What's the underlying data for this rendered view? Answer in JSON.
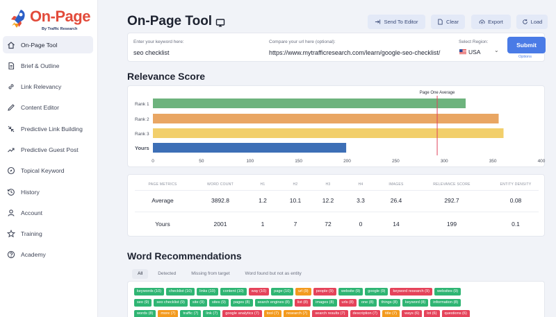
{
  "brand": {
    "name": "On-Page",
    "tagline": "By Traffic Research"
  },
  "sidebar": {
    "items": [
      {
        "label": "On-Page Tool",
        "icon": "home-icon",
        "active": true
      },
      {
        "label": "Brief & Outline",
        "icon": "document-icon",
        "active": false
      },
      {
        "label": "Link Relevancy",
        "icon": "link-icon",
        "active": false
      },
      {
        "label": "Content Editor",
        "icon": "pencil-icon",
        "active": false
      },
      {
        "label": "Predictive Link Building",
        "icon": "arrows-in-icon",
        "active": false
      },
      {
        "label": "Predictive Guest Post",
        "icon": "trend-icon",
        "active": false
      },
      {
        "label": "Topical Keyword",
        "icon": "compass-icon",
        "active": false
      },
      {
        "label": "History",
        "icon": "history-icon",
        "active": false
      },
      {
        "label": "Account",
        "icon": "user-icon",
        "active": false
      },
      {
        "label": "Training",
        "icon": "star-icon",
        "active": false
      },
      {
        "label": "Academy",
        "icon": "help-icon",
        "active": false
      }
    ]
  },
  "header": {
    "title": "On-Page Tool",
    "buttons": {
      "send": "Send To Editor",
      "clear": "Clear",
      "export": "Export",
      "load": "Load"
    }
  },
  "form": {
    "keyword_label": "Enter your keyword here:",
    "keyword_value": "seo checklist",
    "url_label": "Compare your url here (optional):",
    "url_value": "https://www.mytrafficresearch.com/learn/google-seo-checklist/",
    "region_label": "Select Region:",
    "region_value": "USA",
    "submit": "Submit",
    "options": "Options"
  },
  "relevance": {
    "title": "Relevance Score",
    "marker_label": "Page One Average"
  },
  "chart_data": {
    "type": "bar",
    "orientation": "horizontal",
    "categories": [
      "Rank 1",
      "Rank 2",
      "Rank 3",
      "Yours"
    ],
    "values": [
      322,
      356,
      361,
      199
    ],
    "colors": [
      "#6db37d",
      "#e9a663",
      "#f2cf6b",
      "#3d6fb6"
    ],
    "xlim": [
      0,
      400
    ],
    "xticks": [
      0,
      50,
      100,
      150,
      200,
      250,
      300,
      350,
      400
    ],
    "reference_line": {
      "label": "Page One Average",
      "value": 292.7,
      "color": "#e0415b"
    }
  },
  "metrics": {
    "headers": [
      "PAGE METRICS",
      "WORD COUNT",
      "H1",
      "H2",
      "H3",
      "H4",
      "IMAGES",
      "RELEVANCE SCORE",
      "ENTITY DENSITY"
    ],
    "rows": [
      [
        "Average",
        "3892.8",
        "1.2",
        "10.1",
        "12.2",
        "3.3",
        "26.4",
        "292.7",
        "0.08"
      ],
      [
        "Yours",
        "2001",
        "1",
        "7",
        "72",
        "0",
        "14",
        "199",
        "0.1"
      ]
    ]
  },
  "words": {
    "title": "Word Recommendations",
    "tabs": [
      "All",
      "Detected",
      "Missing from target",
      "Word found but not as entity"
    ],
    "rows": [
      [
        {
          "t": "keywords (10)",
          "c": "#2fb573"
        },
        {
          "t": "checklist (10)",
          "c": "#2fb573"
        },
        {
          "t": "links (10)",
          "c": "#2fb573"
        },
        {
          "t": "content (10)",
          "c": "#2fb573"
        },
        {
          "t": "way (10)",
          "c": "#e5435a"
        },
        {
          "t": "page (10)",
          "c": "#2fb573"
        },
        {
          "t": "url (9)",
          "c": "#f39a1e"
        },
        {
          "t": "people (9)",
          "c": "#e5435a"
        },
        {
          "t": "website (9)",
          "c": "#2fb573"
        },
        {
          "t": "google (9)",
          "c": "#2fb573"
        },
        {
          "t": "keyword research (9)",
          "c": "#e5435a"
        },
        {
          "t": "websites (9)",
          "c": "#2fb573"
        }
      ],
      [
        {
          "t": "seo (9)",
          "c": "#2fb573"
        },
        {
          "t": "seo checklist (9)",
          "c": "#2fb573"
        },
        {
          "t": "site (9)",
          "c": "#2fb573"
        },
        {
          "t": "sites (9)",
          "c": "#2fb573"
        },
        {
          "t": "pages (8)",
          "c": "#2fb573"
        },
        {
          "t": "search engines (8)",
          "c": "#2fb573"
        },
        {
          "t": "list (8)",
          "c": "#e5435a"
        },
        {
          "t": "images (8)",
          "c": "#2fb573"
        },
        {
          "t": "urls (8)",
          "c": "#e5435a"
        },
        {
          "t": "one (8)",
          "c": "#2fb573"
        },
        {
          "t": "things (8)",
          "c": "#2fb573"
        },
        {
          "t": "keyword (8)",
          "c": "#2fb573"
        },
        {
          "t": "information (8)",
          "c": "#2fb573"
        }
      ],
      [
        {
          "t": "words (8)",
          "c": "#2fb573"
        },
        {
          "t": "more (7)",
          "c": "#f39a1e"
        },
        {
          "t": "traffic (7)",
          "c": "#2fb573"
        },
        {
          "t": "link (7)",
          "c": "#2fb573"
        },
        {
          "t": "google analytics (7)",
          "c": "#e5435a"
        },
        {
          "t": "tool (7)",
          "c": "#f39a1e"
        },
        {
          "t": "research (7)",
          "c": "#f39a1e"
        },
        {
          "t": "search results (7)",
          "c": "#e5435a"
        },
        {
          "t": "description (7)",
          "c": "#e5435a"
        },
        {
          "t": "title (7)",
          "c": "#f39a1e"
        },
        {
          "t": "ways (6)",
          "c": "#e5435a"
        },
        {
          "t": "lot (6)",
          "c": "#e5435a"
        },
        {
          "t": "questions (6)",
          "c": "#e5435a"
        }
      ]
    ]
  }
}
